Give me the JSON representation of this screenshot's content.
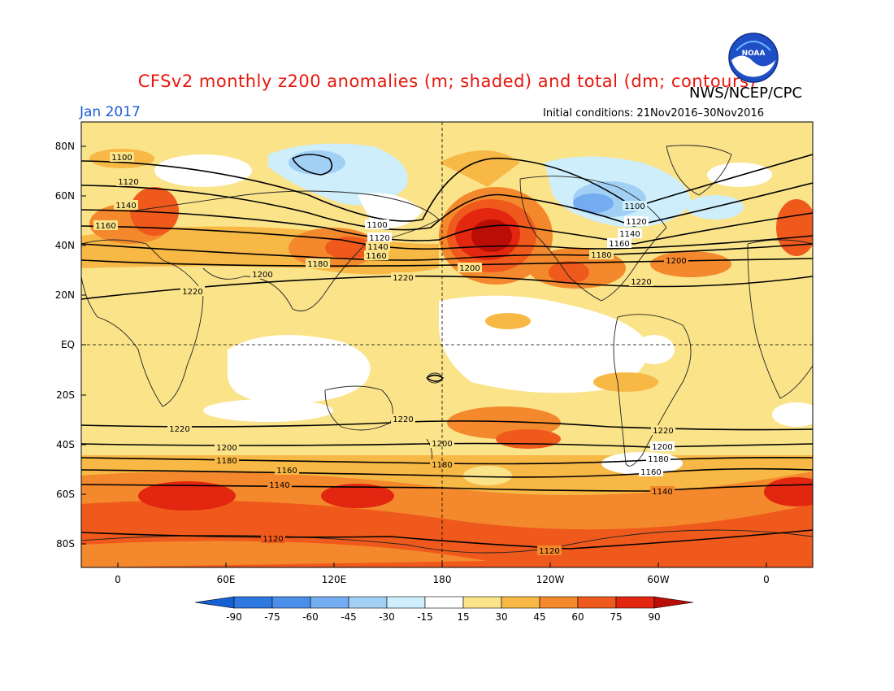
{
  "header": {
    "title": "CFSv2 monthly z200 anomalies (m; shaded) and total (dm; contours)",
    "agency": "NWS/NCEP/CPC",
    "month": "Jan 2017",
    "initial_conditions": "Initial conditions: 21Nov2016–30Nov2016",
    "logo_text": "NOAA"
  },
  "colors": {
    "title": "#e8160c",
    "month": "#1a5bd6",
    "land_outline": "#222222",
    "contour": "#000000"
  },
  "axes": {
    "lat_labels": [
      "80N",
      "60N",
      "40N",
      "20N",
      "EQ",
      "20S",
      "40S",
      "60S",
      "80S"
    ],
    "lon_labels": [
      "0",
      "60E",
      "120E",
      "180",
      "120W",
      "60W",
      "0"
    ]
  },
  "colorbar": {
    "levels": [
      "-90",
      "-75",
      "-60",
      "-45",
      "-30",
      "-15",
      "15",
      "30",
      "45",
      "60",
      "75",
      "90"
    ],
    "colors": [
      "#1560d4",
      "#2f78e0",
      "#4b8fea",
      "#73acf0",
      "#a2d0f5",
      "#cdeefa",
      "#ffffff",
      "#fbe38a",
      "#f7b845",
      "#f3882c",
      "#ef5a1c",
      "#e2260f",
      "#b90d06"
    ]
  },
  "contour_labels": [
    "1100",
    "1120",
    "1140",
    "1160",
    "1180",
    "1200",
    "1220"
  ]
}
